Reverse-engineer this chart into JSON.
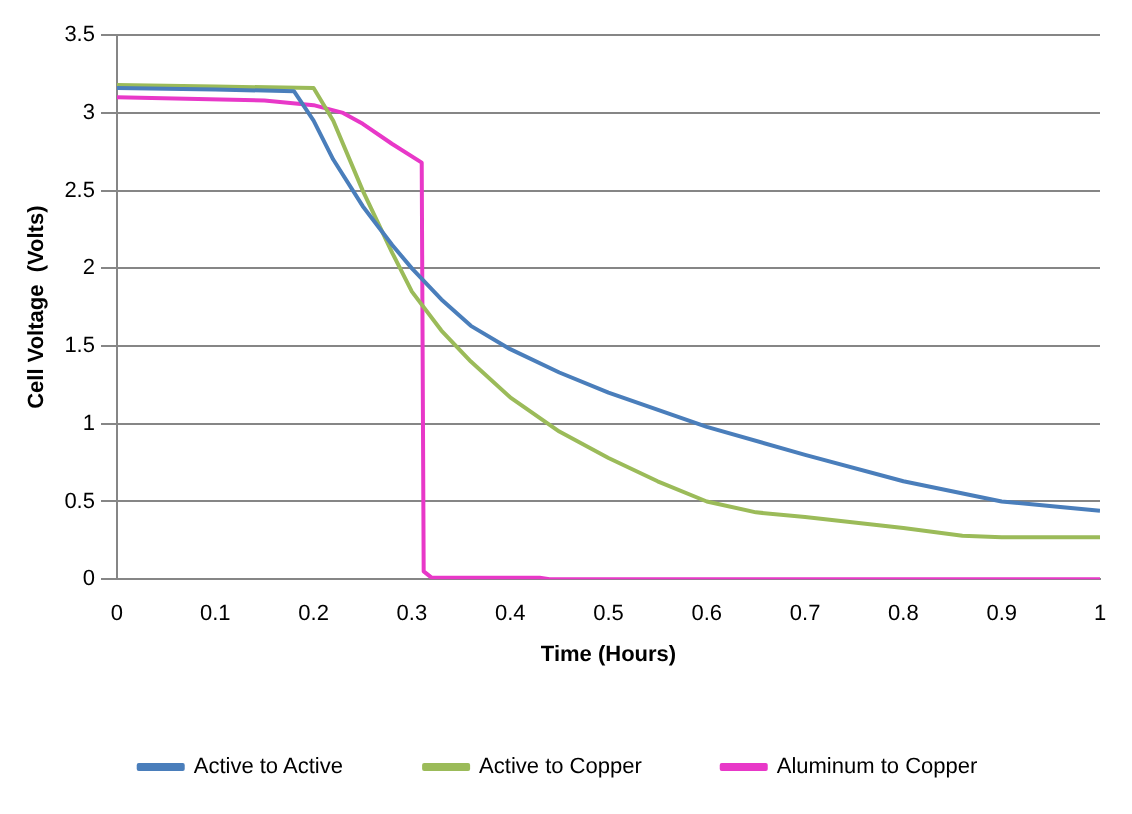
{
  "chart_data": {
    "type": "line",
    "xlabel": "Time (Hours)",
    "ylabel": "Cell Voltage  (Volts)",
    "xlim": [
      0,
      1
    ],
    "xticks": [
      0,
      0.1,
      0.2,
      0.3,
      0.4,
      0.5,
      0.6,
      0.7,
      0.8,
      0.9,
      1
    ],
    "ylim": [
      0,
      3.5
    ],
    "yticks": [
      0,
      0.5,
      1,
      1.5,
      2,
      2.5,
      3,
      3.5
    ],
    "grid": "y",
    "legend": "bottom",
    "marker": "none",
    "line_style": "solid",
    "series": [
      {
        "name": "Active to Active",
        "color": "#4a7ebb",
        "x": [
          0,
          0.1,
          0.18,
          0.2,
          0.22,
          0.25,
          0.28,
          0.3,
          0.33,
          0.36,
          0.4,
          0.45,
          0.5,
          0.6,
          0.7,
          0.8,
          0.9,
          1.0
        ],
        "values": [
          3.16,
          3.15,
          3.14,
          2.95,
          2.7,
          2.4,
          2.15,
          2.0,
          1.8,
          1.63,
          1.48,
          1.33,
          1.2,
          0.98,
          0.8,
          0.63,
          0.5,
          0.44
        ]
      },
      {
        "name": "Active to Copper",
        "color": "#9bbb59",
        "x": [
          0,
          0.1,
          0.2,
          0.22,
          0.25,
          0.28,
          0.3,
          0.33,
          0.36,
          0.4,
          0.45,
          0.5,
          0.55,
          0.6,
          0.65,
          0.7,
          0.8,
          0.86,
          0.9,
          1.0
        ],
        "values": [
          3.18,
          3.17,
          3.16,
          2.95,
          2.5,
          2.1,
          1.85,
          1.6,
          1.4,
          1.17,
          0.95,
          0.78,
          0.63,
          0.5,
          0.43,
          0.4,
          0.33,
          0.28,
          0.27,
          0.27
        ]
      },
      {
        "name": "Aluminum to Copper",
        "color": "#e838c8",
        "x": [
          0,
          0.15,
          0.2,
          0.23,
          0.25,
          0.28,
          0.31,
          0.312,
          0.32,
          0.43,
          0.44,
          1.0
        ],
        "values": [
          3.1,
          3.08,
          3.05,
          3.0,
          2.93,
          2.8,
          2.68,
          0.05,
          0.01,
          0.01,
          0,
          0
        ]
      }
    ]
  }
}
